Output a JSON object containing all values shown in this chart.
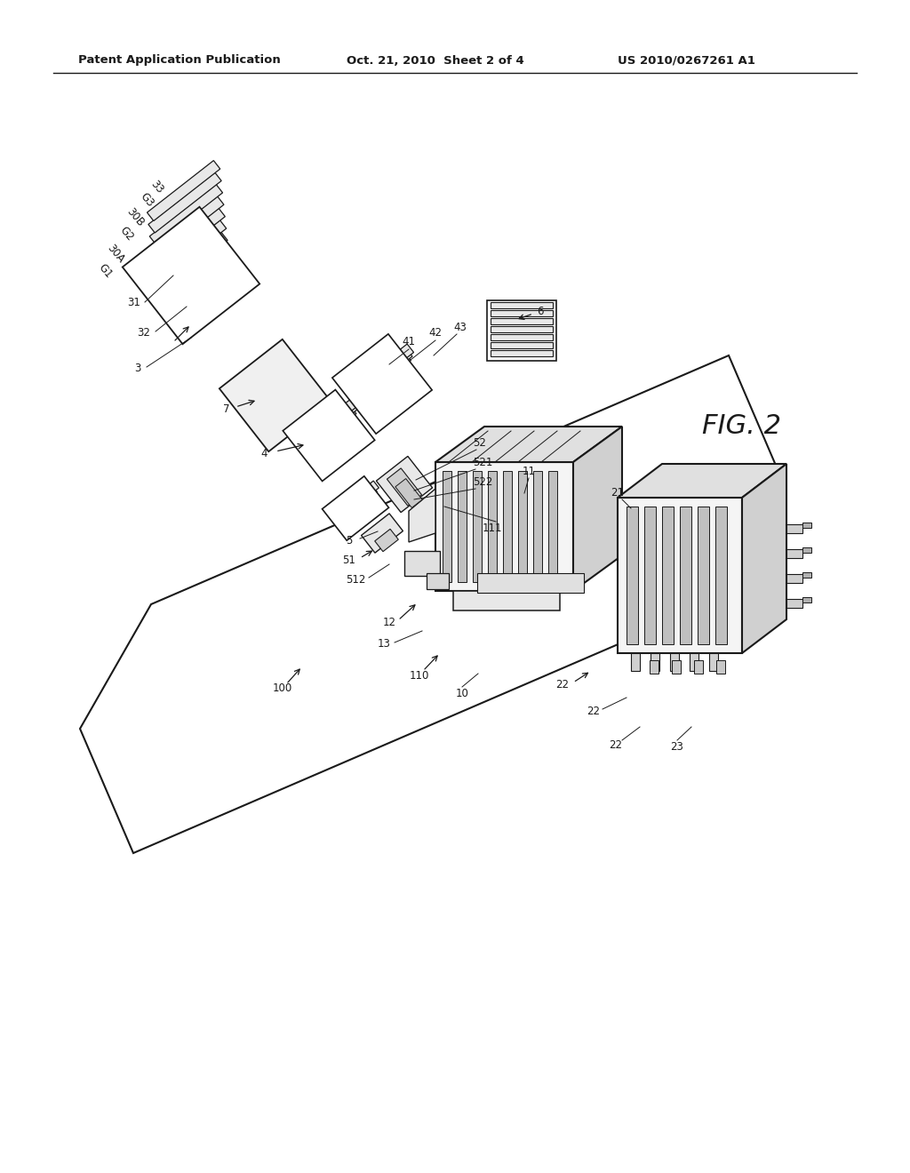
{
  "bg_color": "#ffffff",
  "header_left": "Patent Application Publication",
  "header_mid": "Oct. 21, 2010  Sheet 2 of 4",
  "header_right": "US 2010/0267261 A1",
  "fig_label": "FIG. 2",
  "header_fontsize": 9.5,
  "fig_label_fontsize": 22,
  "line_color": "#1a1a1a",
  "line_width": 1.2,
  "thin_line": 0.7,
  "thick_line": 1.8
}
